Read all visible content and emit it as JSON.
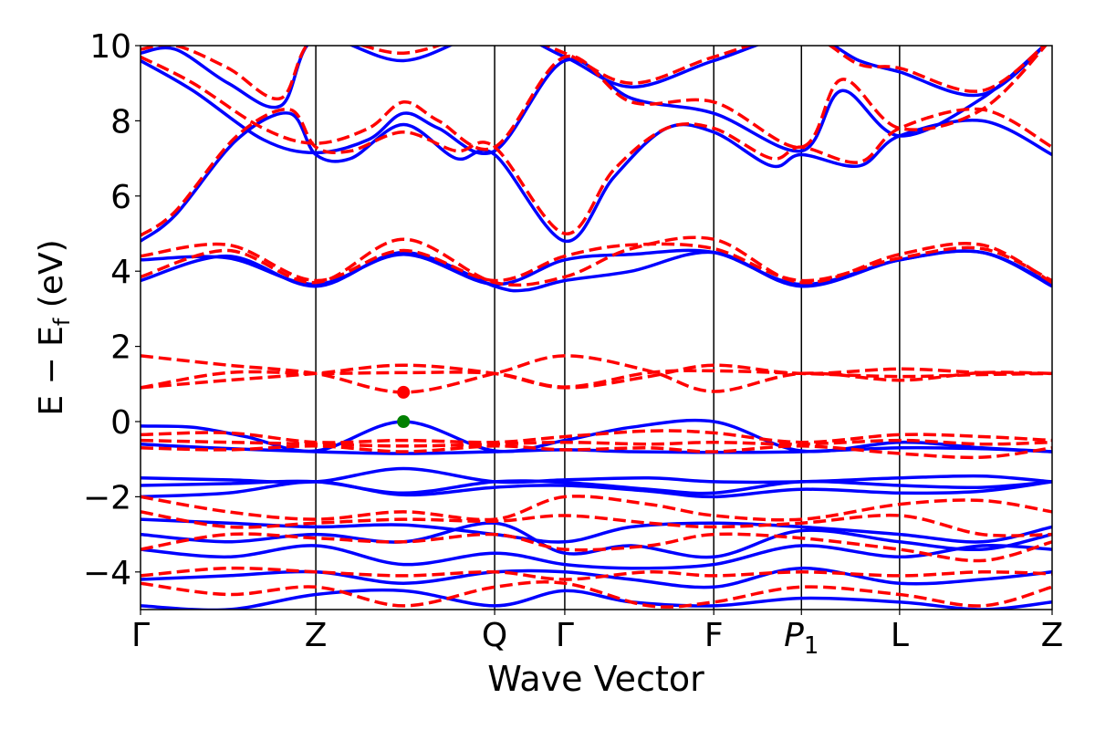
{
  "chart_data": {
    "type": "line",
    "title": "",
    "xlabel": "Wave Vector",
    "ylabel": {
      "main": "E − E",
      "subscript": "f",
      "unit": " (eV)"
    },
    "ylim": [
      -5,
      10
    ],
    "yticks": [
      -4,
      -2,
      0,
      2,
      4,
      6,
      8,
      10
    ],
    "ytick_labels": [
      "−4",
      "−2",
      "0",
      "2",
      "4",
      "6",
      "8",
      "10"
    ],
    "xlim": [
      0,
      5.2
    ],
    "kpoints": [
      {
        "label": "Γ",
        "x": 0,
        "italic": false
      },
      {
        "label": "Z",
        "x": 1.0,
        "italic": false
      },
      {
        "label": "Q",
        "x": 2.02,
        "italic": false
      },
      {
        "label": "Γ",
        "x": 2.42,
        "italic": false
      },
      {
        "label": "F",
        "x": 3.27,
        "italic": false
      },
      {
        "label": "P",
        "sub": "1",
        "x": 3.77,
        "italic": true
      },
      {
        "label": "L",
        "x": 4.33,
        "italic": false
      },
      {
        "label": "Z",
        "x": 5.2,
        "italic": false
      }
    ],
    "grid": false,
    "legend": "none",
    "colors": {
      "solid": "#0000ff",
      "dashed": "#ff0000",
      "vbm": "#008000",
      "cbm": "#ff0000",
      "kline": "#000000"
    },
    "markers": [
      {
        "name": "vbm",
        "x": 1.5,
        "y": 0.0,
        "color": "#008000"
      },
      {
        "name": "cbm",
        "x": 1.5,
        "y": 0.78,
        "color": "#ff0000"
      }
    ],
    "series": [
      {
        "style": "solid",
        "x": [
          0,
          0.3,
          0.6,
          1.0,
          1.5,
          2.02,
          2.42,
          2.8,
          3.27,
          3.77,
          4.33,
          4.8,
          5.2
        ],
        "y": [
          -0.12,
          -0.15,
          -0.4,
          -0.78,
          0.0,
          -0.78,
          -0.5,
          -0.15,
          0.0,
          -0.78,
          -0.55,
          -0.7,
          -0.8
        ]
      },
      {
        "style": "solid",
        "x": [
          0,
          0.4,
          1.0,
          1.5,
          2.02,
          2.42,
          2.8,
          3.27,
          3.77,
          4.33,
          4.8,
          5.2
        ],
        "y": [
          -0.6,
          -0.7,
          -0.8,
          -0.85,
          -0.8,
          -0.75,
          -0.8,
          -0.82,
          -0.8,
          -0.7,
          -0.72,
          -0.8
        ]
      },
      {
        "style": "solid",
        "x": [
          0,
          0.5,
          1.0,
          1.5,
          2.02,
          2.42,
          2.9,
          3.27,
          3.77,
          4.33,
          4.8,
          5.2
        ],
        "y": [
          -1.5,
          -1.55,
          -1.6,
          -1.25,
          -1.6,
          -1.55,
          -1.5,
          -1.6,
          -1.6,
          -1.5,
          -1.45,
          -1.6
        ]
      },
      {
        "style": "solid",
        "x": [
          0,
          0.5,
          1.0,
          1.5,
          2.02,
          2.42,
          2.9,
          3.27,
          3.77,
          4.33,
          4.8,
          5.2
        ],
        "y": [
          -1.7,
          -1.65,
          -1.6,
          -1.9,
          -1.6,
          -1.62,
          -1.8,
          -1.9,
          -1.6,
          -1.7,
          -1.75,
          -1.6
        ]
      },
      {
        "style": "solid",
        "x": [
          0,
          0.5,
          1.0,
          1.5,
          2.02,
          2.42,
          2.9,
          3.27,
          3.77,
          4.33,
          4.8,
          5.2
        ],
        "y": [
          -2.0,
          -1.9,
          -1.6,
          -1.95,
          -1.75,
          -1.7,
          -1.85,
          -2.0,
          -1.8,
          -1.9,
          -1.85,
          -1.6
        ]
      },
      {
        "style": "solid",
        "x": [
          0,
          0.5,
          1.0,
          1.5,
          2.02,
          2.42,
          2.8,
          3.27,
          3.77,
          4.33,
          4.8,
          5.2
        ],
        "y": [
          -2.6,
          -2.7,
          -2.8,
          -2.75,
          -3.0,
          -3.2,
          -2.8,
          -2.7,
          -2.8,
          -3.0,
          -3.2,
          -2.8
        ]
      },
      {
        "style": "solid",
        "x": [
          0,
          0.5,
          1.0,
          1.5,
          2.02,
          2.42,
          2.8,
          3.27,
          3.77,
          4.33,
          4.8,
          5.2
        ],
        "y": [
          -3.0,
          -3.2,
          -3.0,
          -3.2,
          -2.7,
          -3.5,
          -3.3,
          -3.6,
          -2.9,
          -3.2,
          -3.4,
          -3.0
        ]
      },
      {
        "style": "solid",
        "x": [
          0,
          0.5,
          1.0,
          1.5,
          2.02,
          2.42,
          2.8,
          3.27,
          3.77,
          4.33,
          4.8,
          5.2
        ],
        "y": [
          -3.4,
          -3.6,
          -3.3,
          -3.8,
          -3.5,
          -3.8,
          -3.9,
          -3.8,
          -3.3,
          -3.6,
          -3.3,
          -3.4
        ]
      },
      {
        "style": "solid",
        "x": [
          0,
          0.5,
          1.0,
          1.5,
          2.02,
          2.42,
          2.8,
          3.27,
          3.77,
          4.33,
          4.8,
          5.2
        ],
        "y": [
          -4.2,
          -4.1,
          -4.0,
          -4.3,
          -4.0,
          -4.0,
          -4.2,
          -4.4,
          -3.9,
          -4.3,
          -4.2,
          -4.0
        ]
      },
      {
        "style": "solid",
        "x": [
          0,
          0.5,
          1.0,
          1.5,
          2.02,
          2.42,
          2.8,
          3.27,
          3.77,
          4.33,
          4.8,
          5.2
        ],
        "y": [
          -4.9,
          -5.0,
          -4.6,
          -4.5,
          -4.9,
          -4.5,
          -4.8,
          -4.9,
          -4.7,
          -4.8,
          -5.0,
          -4.8
        ]
      },
      {
        "style": "solid",
        "x": [
          0,
          0.5,
          1.0,
          1.5,
          2.02,
          2.2,
          2.42,
          2.8,
          3.27,
          3.77,
          4.33,
          4.8,
          5.2
        ],
        "y": [
          3.75,
          4.4,
          3.6,
          4.5,
          3.6,
          3.5,
          3.75,
          4.0,
          4.5,
          3.6,
          4.3,
          4.5,
          3.6
        ]
      },
      {
        "style": "solid",
        "x": [
          0,
          0.5,
          1.0,
          1.5,
          2.02,
          2.42,
          2.8,
          3.27,
          3.77,
          4.33,
          4.8,
          5.2
        ],
        "y": [
          4.3,
          4.35,
          3.65,
          4.45,
          3.65,
          4.3,
          4.45,
          4.5,
          3.65,
          4.3,
          4.5,
          3.65
        ]
      },
      {
        "style": "solid",
        "x": [
          0,
          0.2,
          0.55,
          0.85,
          1.0,
          1.2,
          1.5,
          1.8,
          2.02,
          2.42,
          2.7,
          3.0,
          3.27,
          3.6,
          3.77,
          4.1,
          4.33,
          4.8,
          5.2
        ],
        "y": [
          4.8,
          5.5,
          7.5,
          8.2,
          7.1,
          7.0,
          7.9,
          7.0,
          7.1,
          4.8,
          6.5,
          7.8,
          7.7,
          6.8,
          7.1,
          6.8,
          7.6,
          8.0,
          7.1
        ]
      },
      {
        "style": "solid",
        "x": [
          0,
          0.3,
          0.7,
          1.0,
          1.3,
          1.5,
          1.7,
          2.02,
          2.42,
          2.8,
          3.27,
          3.77,
          4.0,
          4.33,
          4.8,
          5.2
        ],
        "y": [
          9.6,
          8.8,
          7.5,
          7.15,
          7.5,
          8.2,
          7.8,
          7.2,
          9.6,
          8.6,
          8.2,
          7.2,
          8.8,
          7.6,
          8.6,
          10.2
        ]
      },
      {
        "style": "solid",
        "x": [
          0,
          0.2,
          0.5,
          0.8,
          1.0,
          1.5,
          2.02,
          2.42,
          2.8,
          3.27,
          3.77,
          4.1,
          4.33,
          4.8,
          5.2
        ],
        "y": [
          9.8,
          9.9,
          9.0,
          8.4,
          10.2,
          9.6,
          10.4,
          9.7,
          8.9,
          9.6,
          10.3,
          9.6,
          9.3,
          8.7,
          10.2
        ]
      },
      {
        "style": "dashed",
        "x": [
          0,
          0.5,
          1.0,
          1.5,
          2.02,
          2.42,
          2.9,
          3.27,
          3.77,
          4.33,
          4.8,
          5.2
        ],
        "y": [
          1.75,
          1.5,
          1.28,
          0.78,
          1.28,
          1.75,
          1.35,
          0.8,
          1.28,
          1.1,
          1.3,
          1.28
        ]
      },
      {
        "style": "dashed",
        "x": [
          0,
          0.5,
          1.0,
          1.5,
          2.02,
          2.42,
          2.9,
          3.27,
          3.77,
          4.33,
          4.8,
          5.2
        ],
        "y": [
          0.9,
          1.1,
          1.28,
          1.5,
          1.28,
          0.9,
          1.2,
          1.5,
          1.28,
          1.4,
          1.3,
          1.28
        ]
      },
      {
        "style": "dashed",
        "x": [
          0,
          0.5,
          1.0,
          1.5,
          2.02,
          2.42,
          2.9,
          3.27,
          3.77,
          4.33,
          4.8,
          5.2
        ],
        "y": [
          0.9,
          1.3,
          1.28,
          1.3,
          1.28,
          0.92,
          1.3,
          1.35,
          1.28,
          1.2,
          1.25,
          1.28
        ]
      },
      {
        "style": "dashed",
        "x": [
          0,
          0.5,
          1.0,
          1.5,
          2.02,
          2.42,
          2.9,
          3.27,
          3.77,
          4.33,
          4.8,
          5.2
        ],
        "y": [
          -0.35,
          -0.3,
          -0.55,
          -0.5,
          -0.55,
          -0.4,
          -0.25,
          -0.3,
          -0.55,
          -0.35,
          -0.4,
          -0.5
        ]
      },
      {
        "style": "dashed",
        "x": [
          0,
          0.5,
          1.0,
          1.5,
          2.02,
          2.42,
          2.9,
          3.27,
          3.77,
          4.33,
          4.8,
          5.2
        ],
        "y": [
          -0.5,
          -0.55,
          -0.6,
          -0.65,
          -0.6,
          -0.55,
          -0.6,
          -0.55,
          -0.6,
          -0.5,
          -0.6,
          -0.55
        ]
      },
      {
        "style": "dashed",
        "x": [
          0,
          0.5,
          1.0,
          1.5,
          2.02,
          2.42,
          2.9,
          3.27,
          3.77,
          4.33,
          4.8,
          5.2
        ],
        "y": [
          -0.7,
          -0.75,
          -0.65,
          -0.8,
          -0.65,
          -0.75,
          -0.7,
          -0.8,
          -0.65,
          -0.85,
          -0.95,
          -0.7
        ]
      },
      {
        "style": "dashed",
        "x": [
          0,
          0.5,
          1.0,
          1.5,
          2.02,
          2.42,
          2.9,
          3.27,
          3.77,
          4.33,
          4.8,
          5.2
        ],
        "y": [
          -2.0,
          -2.4,
          -2.6,
          -2.4,
          -2.6,
          -2.0,
          -2.2,
          -2.5,
          -2.6,
          -2.2,
          -2.1,
          -2.4
        ]
      },
      {
        "style": "dashed",
        "x": [
          0,
          0.5,
          1.0,
          1.5,
          2.02,
          2.42,
          2.9,
          3.27,
          3.77,
          4.33,
          4.8,
          5.2
        ],
        "y": [
          -2.4,
          -2.8,
          -2.7,
          -2.6,
          -2.65,
          -2.5,
          -2.7,
          -2.8,
          -2.7,
          -2.5,
          -3.0,
          -3.0
        ]
      },
      {
        "style": "dashed",
        "x": [
          0,
          0.5,
          1.0,
          1.5,
          2.02,
          2.42,
          2.9,
          3.27,
          3.77,
          4.33,
          4.8,
          5.2
        ],
        "y": [
          -3.4,
          -3.0,
          -3.1,
          -3.2,
          -3.0,
          -3.4,
          -3.3,
          -3.0,
          -3.1,
          -3.4,
          -3.7,
          -3.2
        ]
      },
      {
        "style": "dashed",
        "x": [
          0,
          0.5,
          1.0,
          1.5,
          2.02,
          2.42,
          2.9,
          3.27,
          3.77,
          4.33,
          4.8,
          5.2
        ],
        "y": [
          -4.1,
          -3.9,
          -4.0,
          -4.1,
          -4.0,
          -4.2,
          -4.0,
          -4.1,
          -4.0,
          -4.1,
          -4.0,
          -4.05
        ]
      },
      {
        "style": "dashed",
        "x": [
          0,
          0.5,
          1.0,
          1.5,
          2.02,
          2.42,
          2.9,
          3.27,
          3.77,
          4.33,
          4.8,
          5.2
        ],
        "y": [
          -4.3,
          -4.6,
          -4.4,
          -4.9,
          -4.4,
          -4.3,
          -4.9,
          -4.8,
          -4.4,
          -4.6,
          -4.9,
          -4.4
        ]
      },
      {
        "style": "dashed",
        "x": [
          0,
          0.5,
          1.0,
          1.5,
          2.02,
          2.42,
          2.8,
          3.27,
          3.77,
          4.33,
          4.8,
          5.2
        ],
        "y": [
          3.85,
          4.55,
          3.7,
          4.85,
          3.7,
          3.85,
          4.6,
          4.85,
          3.7,
          4.45,
          4.7,
          3.7
        ]
      },
      {
        "style": "dashed",
        "x": [
          0,
          0.5,
          1.0,
          1.5,
          2.02,
          2.42,
          2.8,
          3.27,
          3.77,
          4.33,
          4.8,
          5.2
        ],
        "y": [
          4.4,
          4.7,
          3.75,
          4.55,
          3.75,
          4.4,
          4.7,
          4.6,
          3.75,
          4.35,
          4.6,
          3.75
        ]
      },
      {
        "style": "dashed",
        "x": [
          0,
          0.2,
          0.55,
          0.85,
          1.0,
          1.2,
          1.5,
          1.8,
          2.02,
          2.42,
          2.7,
          3.0,
          3.27,
          3.6,
          3.77,
          4.1,
          4.33,
          4.8,
          5.2
        ],
        "y": [
          4.95,
          5.6,
          7.6,
          8.3,
          7.3,
          7.2,
          7.7,
          7.2,
          7.3,
          5.0,
          6.7,
          7.8,
          7.8,
          7.0,
          7.3,
          6.9,
          7.8,
          8.3,
          7.3
        ]
      },
      {
        "style": "dashed",
        "x": [
          0,
          0.3,
          0.7,
          1.0,
          1.3,
          1.5,
          1.7,
          2.02,
          2.42,
          2.8,
          3.27,
          3.77,
          4.0,
          4.33,
          4.8,
          5.2
        ],
        "y": [
          9.7,
          9.0,
          7.8,
          7.4,
          7.8,
          8.5,
          8.0,
          7.3,
          9.7,
          8.5,
          8.5,
          7.3,
          9.1,
          7.8,
          8.3,
          10.2
        ]
      },
      {
        "style": "dashed",
        "x": [
          0,
          0.2,
          0.5,
          0.8,
          1.0,
          1.5,
          2.02,
          2.42,
          2.8,
          3.27,
          3.77,
          4.1,
          4.33,
          4.8,
          5.2
        ],
        "y": [
          9.9,
          10.0,
          9.4,
          8.6,
          10.2,
          9.8,
          10.4,
          9.8,
          9.0,
          9.7,
          10.3,
          9.5,
          9.4,
          8.8,
          10.2
        ]
      }
    ]
  }
}
